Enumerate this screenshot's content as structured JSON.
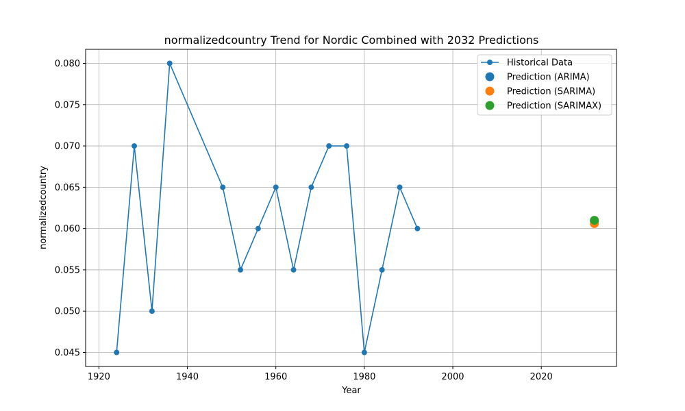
{
  "chart_data": {
    "type": "line",
    "title": "normalizedcountry Trend for Nordic Combined with 2032 Predictions",
    "xlabel": "Year",
    "ylabel": "normalizedcountry",
    "xlim": [
      1917,
      2037
    ],
    "ylim": [
      0.0433,
      0.0817
    ],
    "xticks": [
      1920,
      1940,
      1960,
      1980,
      2000,
      2020
    ],
    "yticks": [
      0.045,
      0.05,
      0.055,
      0.06,
      0.065,
      0.07,
      0.075,
      0.08
    ],
    "grid": true,
    "legend_position": "top-right",
    "series": [
      {
        "name": "Historical Data",
        "kind": "line-marker",
        "color": "#1f77b4",
        "x": [
          1924,
          1928,
          1932,
          1936,
          1948,
          1952,
          1956,
          1960,
          1964,
          1968,
          1972,
          1976,
          1980,
          1984,
          1988,
          1992
        ],
        "y": [
          0.045,
          0.07,
          0.05,
          0.08,
          0.065,
          0.055,
          0.06,
          0.065,
          0.055,
          0.065,
          0.07,
          0.07,
          0.045,
          0.055,
          0.065,
          0.06
        ]
      },
      {
        "name": "Prediction (ARIMA)",
        "kind": "point",
        "color": "#1f77b4",
        "x": [
          2032
        ],
        "y": [
          0.0609
        ]
      },
      {
        "name": "Prediction (SARIMA)",
        "kind": "point",
        "color": "#ff7f0e",
        "x": [
          2032
        ],
        "y": [
          0.0606
        ]
      },
      {
        "name": "Prediction (SARIMAX)",
        "kind": "point",
        "color": "#2ca02c",
        "x": [
          2032
        ],
        "y": [
          0.061
        ]
      }
    ]
  }
}
